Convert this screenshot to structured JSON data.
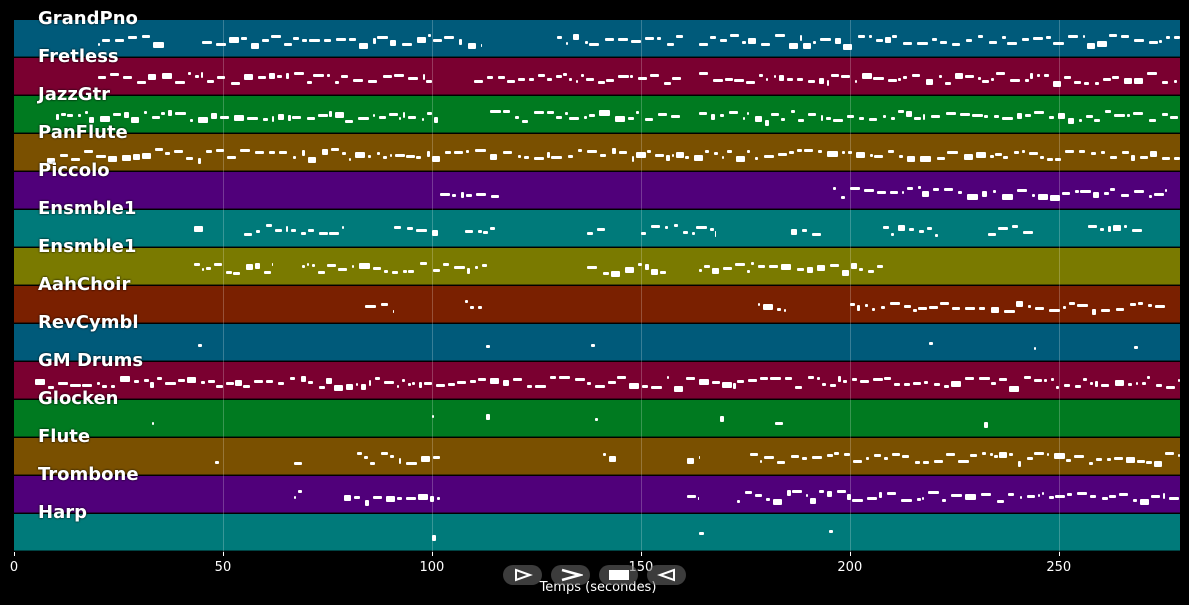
{
  "window": {
    "background": "#000000"
  },
  "axis": {
    "label": "Temps (secondes)",
    "ticks": [
      "0",
      "50",
      "100",
      "150",
      "200",
      "250"
    ],
    "tick_values": [
      0,
      50,
      100,
      150,
      200,
      250
    ],
    "range": [
      0,
      279
    ]
  },
  "tracks": [
    {
      "name": "GrandPno",
      "color": "#005a7a",
      "segments": [
        [
          20,
          36
        ],
        [
          45,
          112
        ],
        [
          130,
          160
        ],
        [
          164,
          279
        ]
      ]
    },
    {
      "name": "Fretless",
      "color": "#7a0030",
      "segments": [
        [
          20,
          100
        ],
        [
          110,
          160
        ],
        [
          164,
          279
        ]
      ]
    },
    {
      "name": "JazzGtr",
      "color": "#007a20",
      "segments": [
        [
          10,
          102
        ],
        [
          114,
          160
        ],
        [
          164,
          279
        ]
      ]
    },
    {
      "name": "PanFlute",
      "color": "#7a5000",
      "segments": [
        [
          8,
          279
        ]
      ]
    },
    {
      "name": "Piccolo",
      "color": "#50007a",
      "segments": [
        [
          102,
          116
        ],
        [
          196,
          276
        ]
      ]
    },
    {
      "name": "Ensmble1",
      "color": "#007a7a",
      "segments": [
        [
          43,
          46
        ],
        [
          55,
          79
        ],
        [
          91,
          102
        ],
        [
          108,
          115
        ],
        [
          137,
          142
        ],
        [
          150,
          168
        ],
        [
          186,
          193
        ],
        [
          208,
          221
        ],
        [
          233,
          244
        ],
        [
          257,
          270
        ]
      ]
    },
    {
      "name": "Ensmble1",
      "color": "#7a7a00",
      "segments": [
        [
          43,
          62
        ],
        [
          69,
          114
        ],
        [
          137,
          156
        ],
        [
          164,
          208
        ]
      ]
    },
    {
      "name": "AahChoir",
      "color": "#7a2000",
      "segments": [
        [
          84,
          91
        ],
        [
          108,
          112
        ],
        [
          178,
          185
        ],
        [
          200,
          276
        ]
      ]
    },
    {
      "name": "RevCymbl",
      "color": "#005a7a",
      "segments": [
        [
          44,
          45
        ],
        [
          113,
          114
        ],
        [
          138,
          139
        ],
        [
          219,
          220
        ],
        [
          244,
          245
        ],
        [
          268,
          269
        ]
      ]
    },
    {
      "name": "GM Drums",
      "color": "#7a0030",
      "segments": [
        [
          5,
          279
        ]
      ]
    },
    {
      "name": "Glocken",
      "color": "#007a20",
      "segments": [
        [
          33,
          34
        ],
        [
          100,
          101
        ],
        [
          113,
          114
        ],
        [
          139,
          140
        ],
        [
          169,
          170
        ],
        [
          182,
          184
        ],
        [
          232,
          233
        ]
      ]
    },
    {
      "name": "Flute",
      "color": "#7a5000",
      "segments": [
        [
          48,
          50
        ],
        [
          67,
          69
        ],
        [
          82,
          102
        ],
        [
          141,
          144
        ],
        [
          161,
          164
        ],
        [
          176,
          279
        ]
      ]
    },
    {
      "name": "Trombone",
      "color": "#50007a",
      "segments": [
        [
          67,
          69
        ],
        [
          79,
          102
        ],
        [
          161,
          164
        ],
        [
          173,
          279
        ]
      ]
    },
    {
      "name": "Harp",
      "color": "#007a7a",
      "segments": [
        [
          100,
          101
        ],
        [
          164,
          165
        ],
        [
          195,
          196
        ]
      ]
    }
  ],
  "transport": {
    "buttons": [
      {
        "name": "play-alt-button",
        "icon": "play-outline-icon"
      },
      {
        "name": "forward-button",
        "icon": "chevron-right-icon"
      },
      {
        "name": "stop-button",
        "icon": "stop-icon"
      },
      {
        "name": "rewind-button",
        "icon": "chevron-left-icon"
      }
    ]
  }
}
